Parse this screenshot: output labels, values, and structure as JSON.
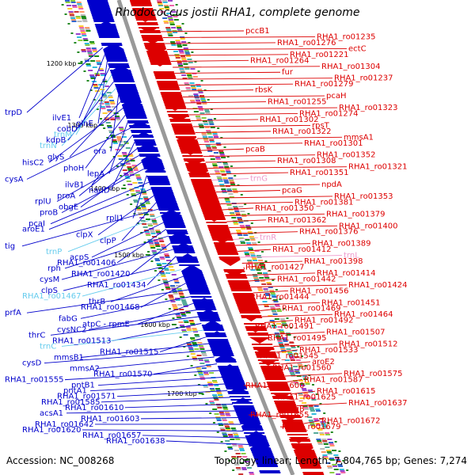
{
  "title": "Rhodococcus jostii RHA1, complete genome",
  "accession": "Accession: NC_008268",
  "stats": "Topology: linear; Length: 7,804,765 bp; Genes: 7,274",
  "colors": {
    "minus": "#0000cc",
    "plus": "#dd0000",
    "trna": "#66ccee",
    "pink": "#ee99cc",
    "axis": "#999999",
    "kbp_tick": "#228822"
  },
  "kbp_marks": [
    "1200 kbp",
    "1300 kbp",
    "1400 kbp",
    "1500 kbp",
    "1600 kbp",
    "1700 kbp"
  ],
  "left_labels": [
    {
      "t": "trpD"
    },
    {
      "t": "ilvE1"
    },
    {
      "t": "glnE"
    },
    {
      "t": "cobD"
    },
    {
      "t": "trnM",
      "kind": "trna"
    },
    {
      "t": "kdpB"
    },
    {
      "t": "trnN",
      "kind": "trna"
    },
    {
      "t": "era"
    },
    {
      "t": "glyS"
    },
    {
      "t": "hisC2"
    },
    {
      "t": "phoH"
    },
    {
      "t": "lepA"
    },
    {
      "t": "cysA"
    },
    {
      "t": "ilvB1"
    },
    {
      "t": "nadD"
    },
    {
      "t": "proA"
    },
    {
      "t": "rplU"
    },
    {
      "t": "obgE"
    },
    {
      "t": "proB"
    },
    {
      "t": "rplJ1"
    },
    {
      "t": "pcaI"
    },
    {
      "t": "aroE1"
    },
    {
      "t": "clpX"
    },
    {
      "t": "clpP"
    },
    {
      "t": "tig"
    },
    {
      "t": "trnP",
      "kind": "trna"
    },
    {
      "t": "acpS"
    },
    {
      "t": "RHA1_ro01406"
    },
    {
      "t": "rph"
    },
    {
      "t": "RHA1_ro01420"
    },
    {
      "t": "cysM"
    },
    {
      "t": "RHA1_ro01434"
    },
    {
      "t": "clpS"
    },
    {
      "t": "RHA1_ro01467",
      "kind": "trna"
    },
    {
      "t": "thrB"
    },
    {
      "t": "RHA1_ro01468"
    },
    {
      "t": "prfA"
    },
    {
      "t": "fabG"
    },
    {
      "t": "atpC - rpmE"
    },
    {
      "t": "cysNC2"
    },
    {
      "t": "thrC"
    },
    {
      "t": "RHA1_ro01513"
    },
    {
      "t": "trnC",
      "kind": "trna"
    },
    {
      "t": "RHA1_ro01515"
    },
    {
      "t": "mmsB1"
    },
    {
      "t": "cysD"
    },
    {
      "t": "mmsA2"
    },
    {
      "t": "RHA1_ro01570"
    },
    {
      "t": "RHA1_ro01555"
    },
    {
      "t": "pntB1"
    },
    {
      "t": "pntA1"
    },
    {
      "t": "RHA1_ro01571"
    },
    {
      "t": "RHA1_ro01585"
    },
    {
      "t": "RHA1_ro01610"
    },
    {
      "t": "acsA1"
    },
    {
      "t": "RHA1_ro01603"
    },
    {
      "t": "RHA1_ro01642"
    },
    {
      "t": "RHA1_ro01620"
    },
    {
      "t": "RHA1_ro01657"
    },
    {
      "t": "RHA1_ro01638"
    }
  ],
  "right_labels": [
    {
      "t": "pccB1"
    },
    {
      "t": "RHA1_ro01235"
    },
    {
      "t": "RHA1_ro01276"
    },
    {
      "t": "ectC"
    },
    {
      "t": "RHA1_ro01221"
    },
    {
      "t": "RHA1_ro01264"
    },
    {
      "t": "RHA1_ro01304"
    },
    {
      "t": "fur"
    },
    {
      "t": "RHA1_ro01237"
    },
    {
      "t": "RHA1_ro01279"
    },
    {
      "t": "rbsK"
    },
    {
      "t": "pcaH"
    },
    {
      "t": "RHA1_ro01255"
    },
    {
      "t": "RHA1_ro01323"
    },
    {
      "t": "RHA1_ro01274"
    },
    {
      "t": "RHA1_ro01302"
    },
    {
      "t": "rpsT"
    },
    {
      "t": "RHA1_ro01322"
    },
    {
      "t": "mmsA1"
    },
    {
      "t": "RHA1_ro01301"
    },
    {
      "t": "pcaB"
    },
    {
      "t": "RHA1_ro01352"
    },
    {
      "t": "RHA1_ro01308"
    },
    {
      "t": "RHA1_ro01321"
    },
    {
      "t": "RHA1_ro01351"
    },
    {
      "t": "trnG",
      "kind": "pink"
    },
    {
      "t": "npdA"
    },
    {
      "t": "pcaG"
    },
    {
      "t": "RHA1_ro01353"
    },
    {
      "t": "RHA1_ro01381"
    },
    {
      "t": "RHA1_ro01350"
    },
    {
      "t": "RHA1_ro01379"
    },
    {
      "t": "RHA1_ro01362"
    },
    {
      "t": "RHA1_ro01400"
    },
    {
      "t": "RHA1_ro01376"
    },
    {
      "t": "trnR",
      "kind": "pink"
    },
    {
      "t": "RHA1_ro01389"
    },
    {
      "t": "RHA1_ro01412"
    },
    {
      "t": "trnL",
      "kind": "pink"
    },
    {
      "t": "RHA1_ro01398"
    },
    {
      "t": "RHA1_ro01427"
    },
    {
      "t": "RHA1_ro01414"
    },
    {
      "t": "RHA1_ro01442"
    },
    {
      "t": "RHA1_ro01424"
    },
    {
      "t": "RHA1_ro01456"
    },
    {
      "t": "RHA1_ro01444"
    },
    {
      "t": "RHA1_ro01451"
    },
    {
      "t": "RHA1_ro01469"
    },
    {
      "t": "RHA1_ro01464"
    },
    {
      "t": "RHA1_ro01492"
    },
    {
      "t": "RHA1_ro01491"
    },
    {
      "t": "RHA1_ro01507"
    },
    {
      "t": "RHA1_ro01495"
    },
    {
      "t": "RHA1_ro01512"
    },
    {
      "t": "RHA1_ro01533"
    },
    {
      "t": "RHA1_ro01545"
    },
    {
      "t": "aroE2"
    },
    {
      "t": "RHA1_ro01560"
    },
    {
      "t": "RHA1_ro01575"
    },
    {
      "t": "RHA1_ro01587"
    },
    {
      "t": "RHA1_ro01600"
    },
    {
      "t": "RHA1_ro01615"
    },
    {
      "t": "RHA1_ro01625"
    },
    {
      "t": "RHA1_ro01637"
    },
    {
      "t": "ligB"
    },
    {
      "t": "RHA1_ro01655"
    },
    {
      "t": "RHA1_ro01672"
    },
    {
      "t": "RHA1_ro01679"
    }
  ]
}
